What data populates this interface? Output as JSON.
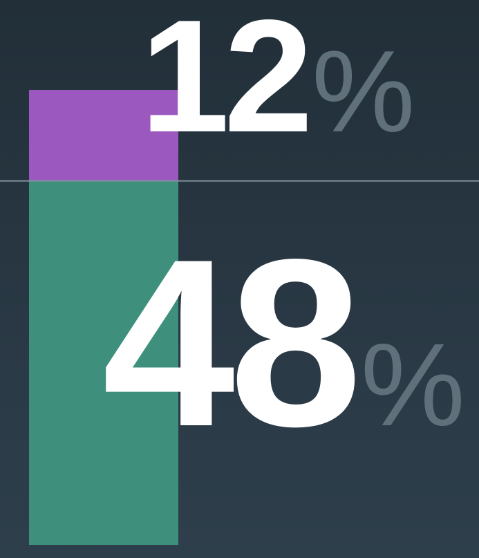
{
  "chart_data": {
    "type": "stacked-bar",
    "values": [
      12,
      48
    ],
    "value_labels": [
      "12%",
      "48%"
    ],
    "colors": [
      "#9b59c0",
      "#3e907c"
    ]
  }
}
